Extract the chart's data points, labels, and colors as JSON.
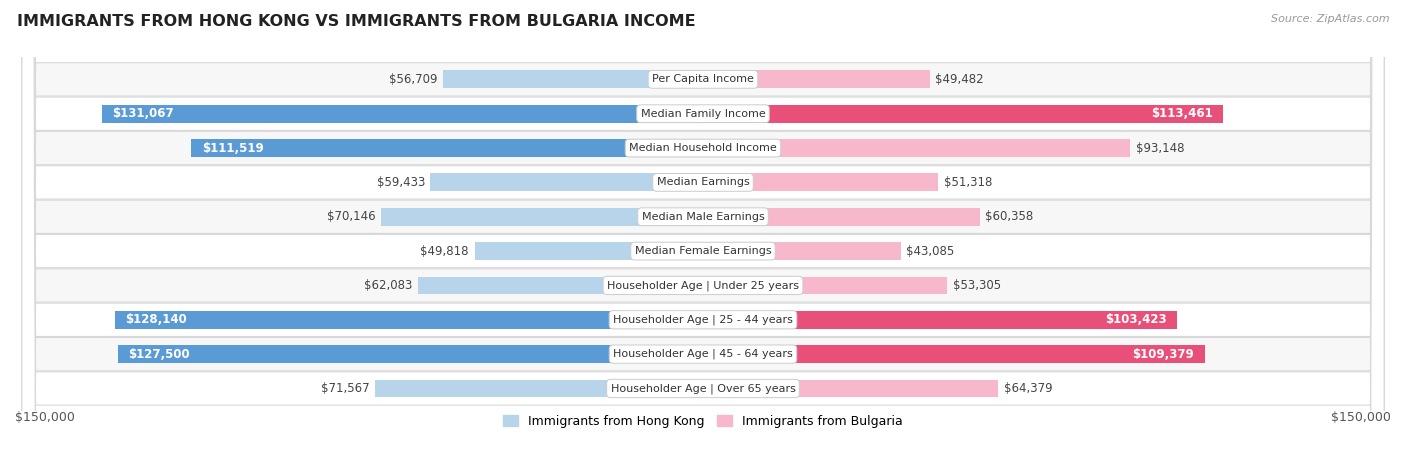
{
  "title": "IMMIGRANTS FROM HONG KONG VS IMMIGRANTS FROM BULGARIA INCOME",
  "source": "Source: ZipAtlas.com",
  "categories": [
    "Per Capita Income",
    "Median Family Income",
    "Median Household Income",
    "Median Earnings",
    "Median Male Earnings",
    "Median Female Earnings",
    "Householder Age | Under 25 years",
    "Householder Age | 25 - 44 years",
    "Householder Age | 45 - 64 years",
    "Householder Age | Over 65 years"
  ],
  "hk_values": [
    56709,
    131067,
    111519,
    59433,
    70146,
    49818,
    62083,
    128140,
    127500,
    71567
  ],
  "bg_values": [
    49482,
    113461,
    93148,
    51318,
    60358,
    43085,
    53305,
    103423,
    109379,
    64379
  ],
  "hk_labels": [
    "$56,709",
    "$131,067",
    "$111,519",
    "$59,433",
    "$70,146",
    "$49,818",
    "$62,083",
    "$128,140",
    "$127,500",
    "$71,567"
  ],
  "bg_labels": [
    "$49,482",
    "$113,461",
    "$93,148",
    "$51,318",
    "$60,358",
    "$43,085",
    "$53,305",
    "$103,423",
    "$109,379",
    "$64,379"
  ],
  "hk_color_light": "#b8d4ea",
  "hk_color_dark": "#5b9bd5",
  "bg_color_light": "#f7b8cc",
  "bg_color_dark": "#e8507a",
  "hk_legend": "Immigrants from Hong Kong",
  "bg_legend": "Immigrants from Bulgaria",
  "x_max": 150000,
  "threshold": 100000,
  "label_font_size": 8.5,
  "category_font_size": 8,
  "row_bg_even": "#f7f7f7",
  "row_bg_odd": "#ffffff",
  "row_border": "#d8d8d8"
}
